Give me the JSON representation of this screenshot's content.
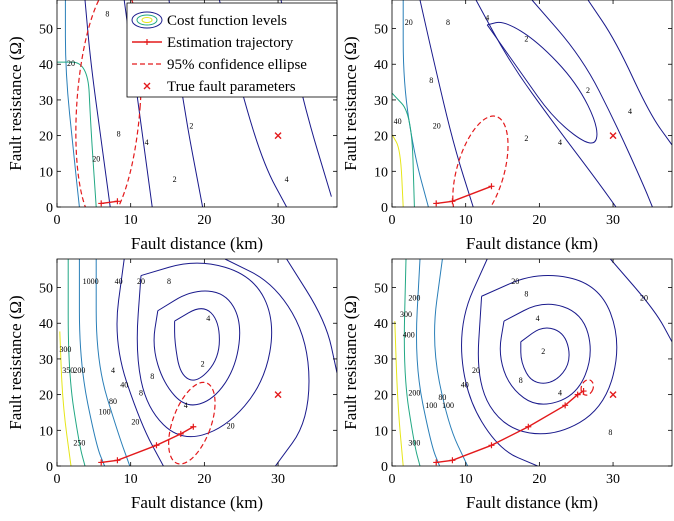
{
  "colors": {
    "contour_low": "#1a1a8c",
    "contour_mid": "#2a7fb8",
    "contour_green": "#22a884",
    "contour_yellow": "#e6e619",
    "trajectory": "#e31a1c",
    "ellipse": "#e31a1c",
    "true_point": "#e31a1c",
    "axes": "#000000"
  },
  "legend": {
    "items": [
      {
        "label": "Cost function levels",
        "kind": "contour-icon"
      },
      {
        "label": "Estimation trajectory",
        "kind": "line-plus"
      },
      {
        "label": "95% confidence ellipse",
        "kind": "dashed"
      },
      {
        "label": "True fault parameters",
        "kind": "cross"
      }
    ]
  },
  "chart_data": [
    {
      "type": "contour",
      "panel": "top-left",
      "xlabel": "Fault distance (km)",
      "ylabel": "Fault resistance (Ω)",
      "xlim": [
        0,
        38
      ],
      "ylim": [
        0,
        58
      ],
      "xticks": [
        0,
        10,
        20,
        30
      ],
      "yticks": [
        0,
        10,
        20,
        30,
        40,
        50
      ],
      "contour_labels": [
        "8",
        "4",
        "2",
        "2",
        "4",
        "8",
        "20",
        "20",
        "4"
      ],
      "trajectory": {
        "x": [
          6.0,
          8.2
        ],
        "y": [
          1.0,
          1.6
        ]
      },
      "ellipse": {
        "cx": 7.0,
        "cy": 29.0,
        "rx": 4.3,
        "ry": 34.0,
        "angle_deg": 4
      },
      "true_point": {
        "x": 30,
        "y": 20
      }
    },
    {
      "type": "contour",
      "panel": "top-right",
      "xlabel": "Fault distance (km)",
      "ylabel": "Fault resistance (Ω)",
      "xlim": [
        0,
        38
      ],
      "ylim": [
        0,
        58
      ],
      "xticks": [
        0,
        10,
        20,
        30
      ],
      "yticks": [
        0,
        10,
        20,
        30,
        40,
        50
      ],
      "contour_labels": [
        "20",
        "8",
        "4",
        "2",
        "8",
        "2",
        "4",
        "20",
        "40",
        "4",
        "2"
      ],
      "trajectory": {
        "x": [
          6.0,
          8.2,
          13.5
        ],
        "y": [
          1.0,
          1.6,
          5.8
        ]
      },
      "ellipse": {
        "cx": 12.0,
        "cy": 10.0,
        "rx": 3.2,
        "ry": 16.0,
        "angle_deg": 16
      },
      "true_point": {
        "x": 30,
        "y": 20
      }
    },
    {
      "type": "contour",
      "panel": "bottom-left",
      "xlabel": "Fault distance (km)",
      "ylabel": "Fault resistance (Ω)",
      "xlim": [
        0,
        38
      ],
      "ylim": [
        0,
        58
      ],
      "xticks": [
        0,
        10,
        20,
        30
      ],
      "yticks": [
        0,
        10,
        20,
        30,
        40,
        50
      ],
      "contour_labels": [
        "1000",
        "40",
        "20",
        "8",
        "4",
        "2",
        "4",
        "8",
        "20",
        "40",
        "80",
        "100",
        "200",
        "250",
        "300",
        "350",
        "4",
        "8",
        "20"
      ],
      "trajectory": {
        "x": [
          6.0,
          8.2,
          13.5,
          16.8,
          18.5
        ],
        "y": [
          1.0,
          1.6,
          5.8,
          9.0,
          11.0
        ]
      },
      "ellipse": {
        "cx": 18.3,
        "cy": 12.0,
        "rx": 2.6,
        "ry": 12.0,
        "angle_deg": 20
      },
      "true_point": {
        "x": 30,
        "y": 20
      }
    },
    {
      "type": "contour",
      "panel": "bottom-right",
      "xlabel": "Fault distance (km)",
      "ylabel": "Fault resistance (Ω)",
      "xlim": [
        0,
        38
      ],
      "ylim": [
        0,
        58
      ],
      "xticks": [
        0,
        10,
        20,
        30
      ],
      "yticks": [
        0,
        10,
        20,
        30,
        40,
        50
      ],
      "contour_labels": [
        "20",
        "8",
        "4",
        "2",
        "4",
        "8",
        "20",
        "40",
        "80",
        "100",
        "200",
        "300",
        "400",
        "200",
        "300",
        "100",
        "8",
        "20"
      ],
      "trajectory": {
        "x": [
          6.0,
          8.2,
          13.5,
          18.5,
          23.5,
          25.2,
          26.0
        ],
        "y": [
          1.0,
          1.6,
          5.8,
          11.0,
          17.0,
          20.0,
          21.0
        ]
      },
      "ellipse": {
        "cx": 26.5,
        "cy": 22.0,
        "rx": 0.8,
        "ry": 2.2,
        "angle_deg": 20
      },
      "true_point": {
        "x": 30,
        "y": 20
      }
    }
  ]
}
